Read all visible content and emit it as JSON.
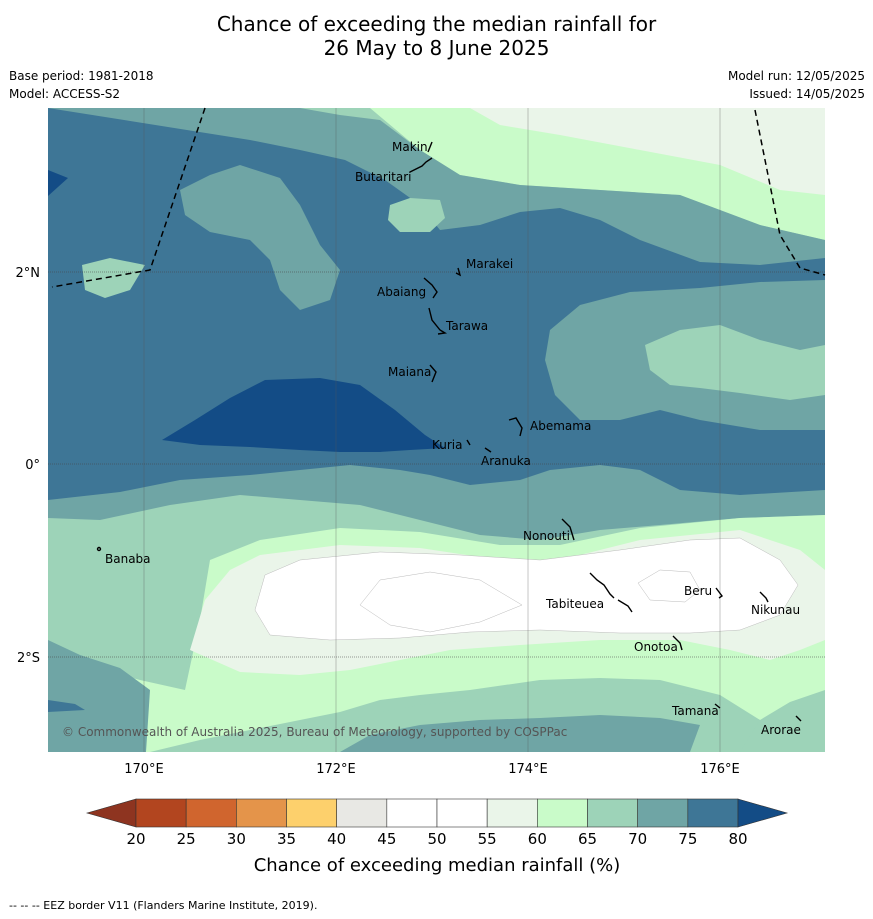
{
  "title": {
    "line1": "Chance of exceeding the median rainfall for",
    "line2": "26 May to 8 June 2025"
  },
  "meta": {
    "base_period": "Base period: 1981-2018",
    "model": "Model: ACCESS-S2",
    "model_run": "Model run: 12/05/2025",
    "issued": "Issued: 14/05/2025"
  },
  "map": {
    "lon_labels": [
      "170°E",
      "172°E",
      "174°E",
      "176°E"
    ],
    "lat_labels": [
      "2°N",
      "0°",
      "2°S"
    ],
    "places": [
      "Makin",
      "Butaritari",
      "Marakei",
      "Abaiang",
      "Tarawa",
      "Maiana",
      "Abemama",
      "Kuria",
      "Aranuka",
      "Nonouti",
      "Banaba",
      "Tabiteuea",
      "Beru",
      "Nikunau",
      "Onotoa",
      "Tamana",
      "Arorae"
    ],
    "copyright": "© Commonwealth of Australia 2025, Bureau of Meteorology, supported by COSPPac"
  },
  "colorbar": {
    "ticks": [
      "20",
      "25",
      "30",
      "35",
      "40",
      "45",
      "50",
      "55",
      "60",
      "65",
      "70",
      "75",
      "80"
    ],
    "colors": [
      "#b2451f",
      "#d0652e",
      "#e4944a",
      "#fdd06c",
      "#e8e8e4",
      "#ffffff",
      "#ffffff",
      "#eaf5e9",
      "#c9fbc9",
      "#9dd3b8",
      "#6fa5a5",
      "#3e7696"
    ],
    "low_color": "#8e3420",
    "high_color": "#134c86",
    "label": "Chance of exceeding median rainfall (%)"
  },
  "footer": {
    "text": "--  --  -- EEZ border V11 (Flanders Marine Institute, 2019)."
  }
}
